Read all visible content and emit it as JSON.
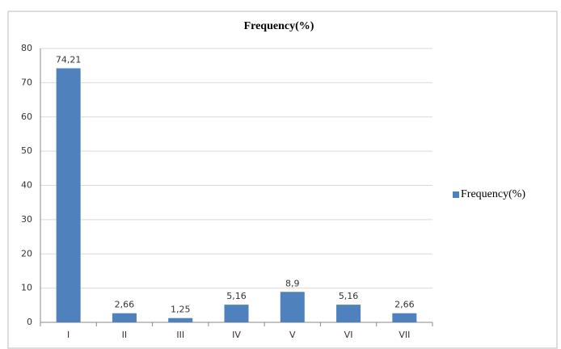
{
  "chart_data": {
    "type": "bar",
    "title": "Frequency(%)",
    "categories": [
      "I",
      "II",
      "III",
      "IV",
      "V",
      "VI",
      "VII"
    ],
    "series": [
      {
        "name": "Frequency(%)",
        "color": "#4f81bd",
        "values": [
          74.21,
          2.66,
          1.25,
          5.16,
          8.9,
          5.16,
          2.66
        ],
        "value_labels": [
          "74,21",
          "2,66",
          "1,25",
          "5,16",
          "8,9",
          "5,16",
          "2,66"
        ]
      }
    ],
    "ylim": [
      0,
      80
    ],
    "yticks": [
      0,
      10,
      20,
      30,
      40,
      50,
      60,
      70,
      80
    ],
    "grid": true,
    "legend": "right"
  }
}
